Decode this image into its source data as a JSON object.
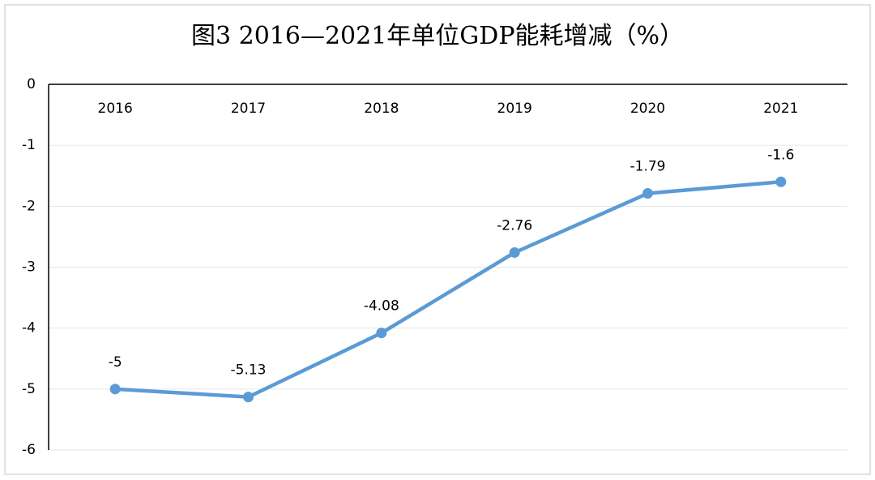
{
  "chart_data": {
    "type": "line",
    "title": "图3 2016—2021年单位GDP能耗增减（%）",
    "categories": [
      "2016",
      "2017",
      "2018",
      "2019",
      "2020",
      "2021"
    ],
    "values": [
      -5,
      -5.13,
      -4.08,
      -2.76,
      -1.79,
      -1.6
    ],
    "color": "#5b9bd5",
    "ylim": [
      -6,
      0
    ],
    "yticks": [
      0,
      -1,
      -2,
      -3,
      -4,
      -5,
      -6
    ],
    "grid": true
  }
}
